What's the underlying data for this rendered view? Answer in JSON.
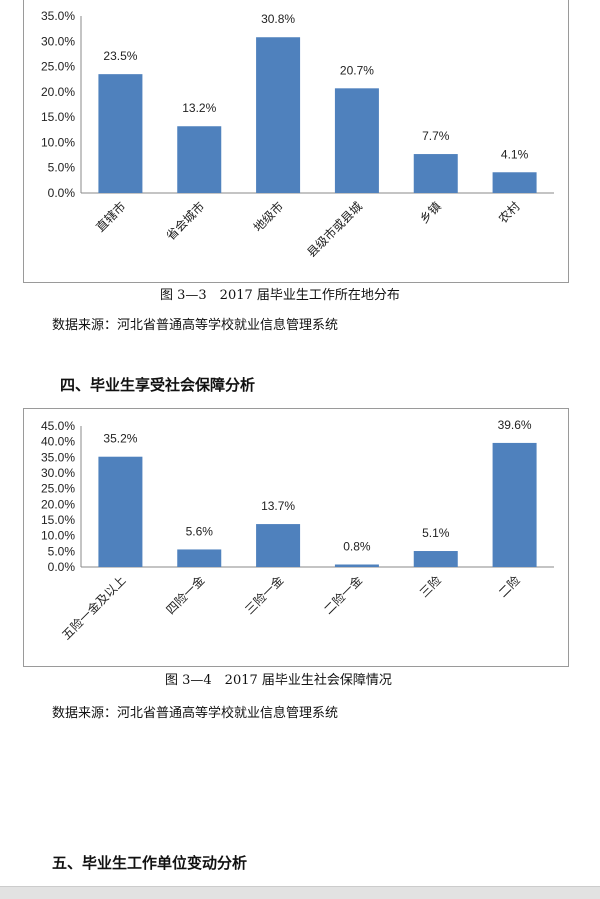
{
  "chart_data": [
    {
      "type": "bar",
      "categories": [
        "直辖市",
        "省会城市",
        "地级市",
        "县级市或县城",
        "乡镇",
        "农村"
      ],
      "values": [
        23.5,
        13.2,
        30.8,
        20.7,
        7.7,
        4.1
      ],
      "data_labels": [
        "23.5%",
        "13.2%",
        "30.8%",
        "20.7%",
        "7.7%",
        "4.1%"
      ],
      "yticks": [
        "0.0%",
        "5.0%",
        "10.0%",
        "15.0%",
        "20.0%",
        "25.0%",
        "30.0%",
        "35.0%"
      ],
      "ylim": [
        0,
        35
      ],
      "grid": false,
      "bar_color": "#4f81bd",
      "title": "图 3—3　2017 届毕业生工作所在地分布"
    },
    {
      "type": "bar",
      "categories": [
        "五险一金及以上",
        "四险一金",
        "三险一金",
        "二险一金",
        "三险",
        "二险"
      ],
      "values": [
        35.2,
        5.6,
        13.7,
        0.8,
        5.1,
        39.6
      ],
      "data_labels": [
        "35.2%",
        "5.6%",
        "13.7%",
        "0.8%",
        "5.1%",
        "39.6%"
      ],
      "yticks": [
        "0.0%",
        "5.0%",
        "10.0%",
        "15.0%",
        "20.0%",
        "25.0%",
        "30.0%",
        "35.0%",
        "40.0%",
        "45.0%"
      ],
      "ylim": [
        0,
        45
      ],
      "grid": false,
      "bar_color": "#4f81bd",
      "title": "图 3—4　2017 届毕业生社会保障情况"
    }
  ],
  "document": {
    "source1": "数据来源：河北省普通高等学校就业信息管理系统",
    "heading4": "四、毕业生享受社会保障分析",
    "source2": "数据来源：河北省普通高等学校就业信息管理系统",
    "heading5": "五、毕业生工作单位变动分析"
  }
}
